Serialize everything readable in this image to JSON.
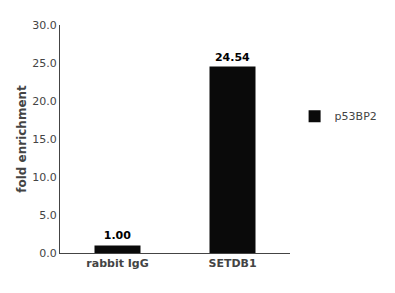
{
  "chart_data": {
    "type": "bar",
    "categories": [
      "rabbit IgG",
      "SETDB1"
    ],
    "series": [
      {
        "name": "p53BP2",
        "color": "#0a0a0a",
        "values": [
          1.0,
          24.54
        ],
        "value_labels": [
          "1.00",
          "24.54"
        ]
      }
    ],
    "ylabel": "fold enrichment",
    "ylim": [
      0,
      30
    ],
    "yticks": [
      {
        "value": 0,
        "label": "0.0"
      },
      {
        "value": 5,
        "label": "5.0"
      },
      {
        "value": 10,
        "label": "10.0"
      },
      {
        "value": 15,
        "label": "15.0"
      },
      {
        "value": 20,
        "label": "20.0"
      },
      {
        "value": 25,
        "label": "25.0"
      },
      {
        "value": 30,
        "label": "30.0"
      }
    ],
    "data_labels": true,
    "grid": false,
    "legend": "right"
  }
}
